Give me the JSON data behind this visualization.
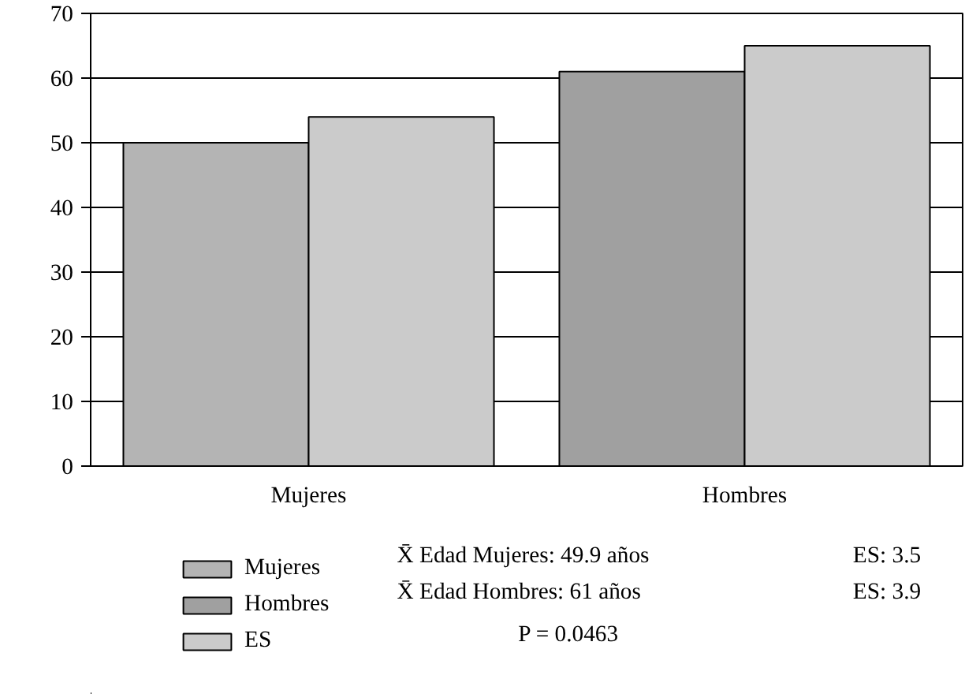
{
  "chart_data": {
    "type": "bar",
    "categories": [
      "Mujeres",
      "Hombres"
    ],
    "series": [
      {
        "name": "Mujeres",
        "color": "#b4b4b4",
        "values": [
          50,
          null
        ]
      },
      {
        "name": "Hombres",
        "color": "#a0a0a0",
        "values": [
          null,
          61
        ]
      },
      {
        "name": "ES",
        "color": "#cbcbcb",
        "values": [
          54,
          65
        ]
      }
    ],
    "ylim": [
      0,
      70
    ],
    "yticks": [
      0,
      10,
      20,
      30,
      40,
      50,
      60,
      70
    ],
    "grid": "y",
    "legend": "bottom left",
    "annotations": [
      "X̄ Edad Mujeres: 49.9 años",
      "X̄ Edad Hombres: 61 años",
      "ES: 3.5",
      "ES: 3.9",
      "P = 0.0463"
    ]
  }
}
